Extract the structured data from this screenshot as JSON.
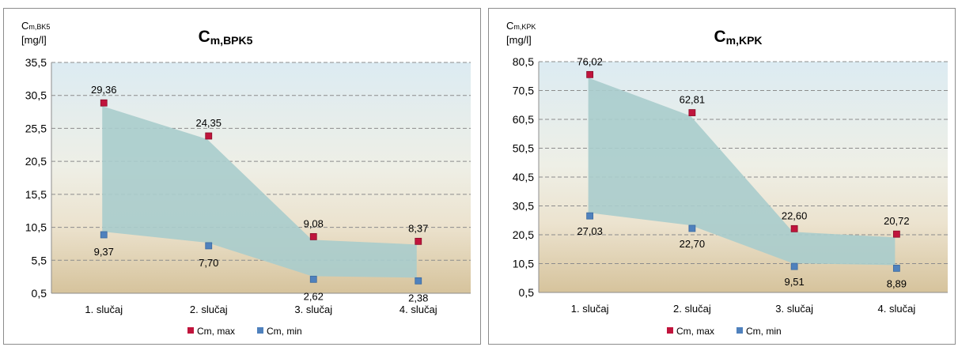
{
  "chart_data": [
    {
      "type": "area",
      "title_main": "C",
      "title_sub": "m,BPK5",
      "ylabel_main": "C",
      "ylabel_sub": "m,BK5",
      "ylabel_unit": "[mg/l]",
      "categories": [
        "1. slučaj",
        "2. slučaj",
        "3. slučaj",
        "4. slučaj"
      ],
      "yticks": [
        "0,5",
        "5,5",
        "10,5",
        "15,5",
        "20,5",
        "25,5",
        "30,5",
        "35,5"
      ],
      "ylim": [
        0.5,
        35.5
      ],
      "series": [
        {
          "name": "Cm, max",
          "values": [
            29.36,
            24.35,
            9.08,
            8.37
          ],
          "labels": [
            "29,36",
            "24,35",
            "9,08",
            "8,37"
          ],
          "color": "#c0143c"
        },
        {
          "name": "Cm, min",
          "values": [
            9.37,
            7.7,
            2.62,
            2.38
          ],
          "labels": [
            "9,37",
            "7,70",
            "2,62",
            "2,38"
          ],
          "color": "#4f81bd"
        }
      ],
      "area_color": "#a9cccc",
      "grid": true,
      "legend": "bottom"
    },
    {
      "type": "area",
      "title_main": "C",
      "title_sub": "m,KPK",
      "ylabel_main": "C",
      "ylabel_sub": "m,KPK",
      "ylabel_unit": "[mg/l]",
      "categories": [
        "1. slučaj",
        "2. slučaj",
        "3. slučaj",
        "4. slučaj"
      ],
      "yticks": [
        "0,5",
        "10,5",
        "20,5",
        "30,5",
        "40,5",
        "50,5",
        "60,5",
        "70,5",
        "80,5"
      ],
      "ylim": [
        0.5,
        80.5
      ],
      "series": [
        {
          "name": "Cm, max",
          "values": [
            76.02,
            62.81,
            22.6,
            20.72
          ],
          "labels": [
            "76,02",
            "62,81",
            "22,60",
            "20,72"
          ],
          "color": "#c0143c"
        },
        {
          "name": "Cm, min",
          "values": [
            27.03,
            22.7,
            9.51,
            8.89
          ],
          "labels": [
            "27,03",
            "22,70",
            "9,51",
            "8,89"
          ],
          "color": "#4f81bd"
        }
      ],
      "area_color": "#a9cccc",
      "grid": true,
      "legend": "bottom"
    }
  ]
}
